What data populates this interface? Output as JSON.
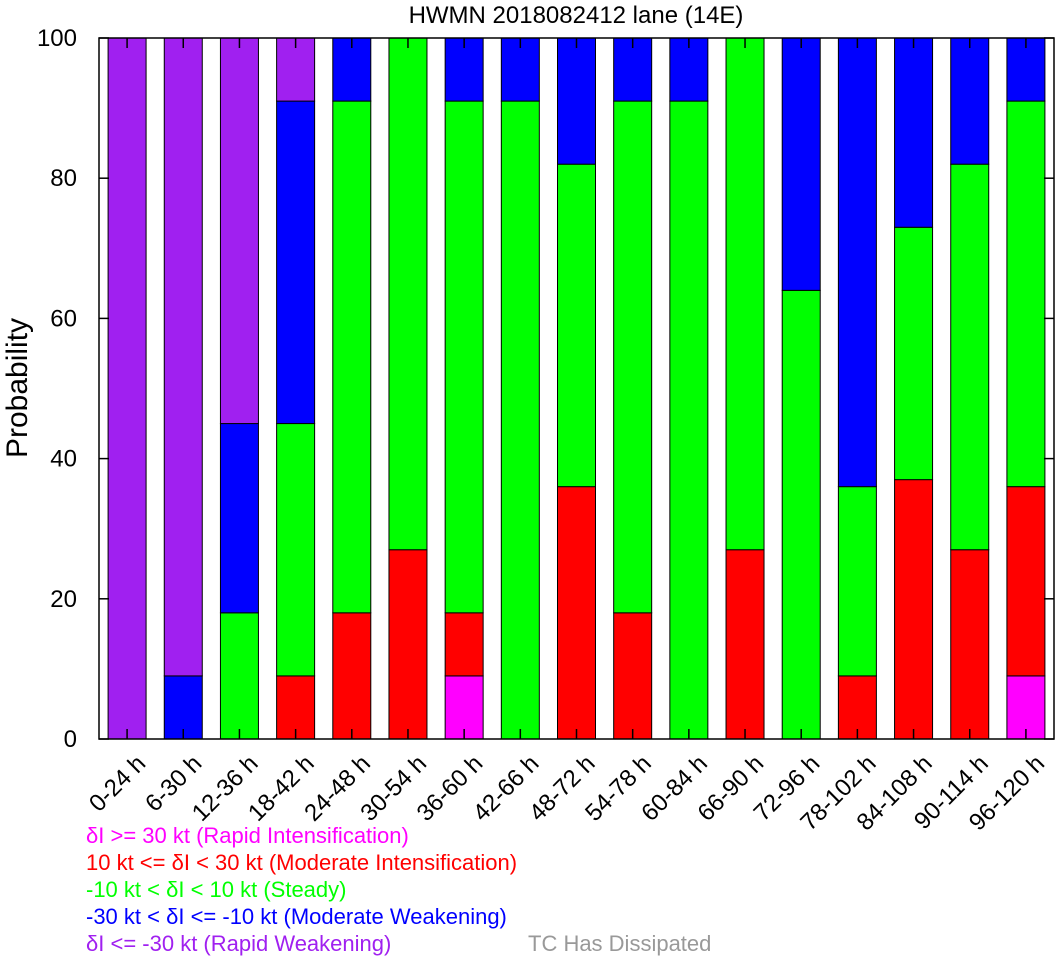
{
  "chart_data": {
    "type": "bar",
    "stacked": true,
    "title": "HWMN 2018082412 lane (14E)",
    "xlabel": "",
    "ylabel": "Probability",
    "ylim": [
      0,
      100
    ],
    "yticks": [
      0,
      20,
      40,
      60,
      80,
      100
    ],
    "categories": [
      "0-24 h",
      "6-30 h",
      "12-36 h",
      "18-42 h",
      "24-48 h",
      "30-54 h",
      "36-60 h",
      "42-66 h",
      "48-72 h",
      "54-78 h",
      "60-84 h",
      "66-90 h",
      "72-96 h",
      "78-102 h",
      "84-108 h",
      "90-114 h",
      "96-120 h"
    ],
    "series": [
      {
        "color": "#ff00ff",
        "values": [
          0,
          0,
          0,
          0,
          0,
          0,
          9,
          0,
          0,
          0,
          0,
          0,
          0,
          0,
          0,
          0,
          9
        ]
      },
      {
        "color": "#ff0000",
        "values": [
          0,
          0,
          0,
          9,
          18,
          27,
          9,
          0,
          36,
          18,
          0,
          27,
          0,
          9,
          37,
          27,
          27
        ]
      },
      {
        "color": "#00ff00",
        "values": [
          0,
          0,
          18,
          36,
          73,
          73,
          73,
          91,
          46,
          73,
          91,
          73,
          64,
          27,
          36,
          55,
          55
        ]
      },
      {
        "color": "#0000ff",
        "values": [
          0,
          9,
          27,
          46,
          9,
          0,
          9,
          9,
          18,
          9,
          9,
          0,
          36,
          64,
          27,
          18,
          9
        ]
      },
      {
        "color": "#a020f0",
        "values": [
          100,
          91,
          55,
          9,
          0,
          0,
          0,
          0,
          0,
          0,
          0,
          0,
          0,
          0,
          0,
          0,
          0
        ]
      }
    ],
    "legend": [
      {
        "label": "δI >= 30 kt (Rapid Intensification)",
        "color": "#ff00ff"
      },
      {
        "label": "10 kt <= δI < 30 kt (Moderate Intensification)",
        "color": "#ff0000"
      },
      {
        "label": "-10 kt < δI < 10 kt (Steady)",
        "color": "#00ff00"
      },
      {
        "label": "-30 kt < δI <= -10 kt (Moderate Weakening)",
        "color": "#0000ff"
      },
      {
        "label": "δI <= -30 kt (Rapid Weakening)",
        "color": "#a020f0"
      },
      {
        "label": "TC Has Dissipated",
        "color": "#999999"
      }
    ],
    "legend_placement": "bottom-left"
  }
}
